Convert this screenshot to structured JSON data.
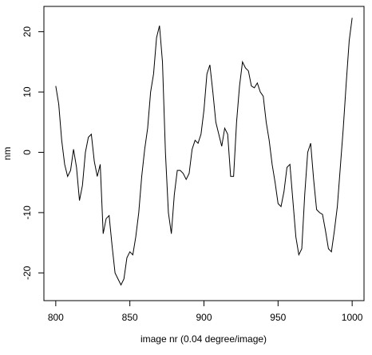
{
  "chart_data": {
    "type": "line",
    "xlabel": "image nr (0.04 degree/image)",
    "ylabel": "nm",
    "x": [
      800,
      802,
      804,
      806,
      808,
      810,
      812,
      814,
      816,
      818,
      820,
      822,
      824,
      826,
      828,
      830,
      832,
      834,
      836,
      838,
      840,
      842,
      844,
      846,
      848,
      850,
      852,
      854,
      856,
      858,
      860,
      862,
      864,
      866,
      868,
      870,
      872,
      874,
      876,
      878,
      880,
      882,
      884,
      886,
      888,
      890,
      892,
      894,
      896,
      898,
      900,
      902,
      904,
      906,
      908,
      910,
      912,
      914,
      916,
      918,
      920,
      922,
      924,
      926,
      928,
      930,
      932,
      934,
      936,
      938,
      940,
      942,
      944,
      946,
      948,
      950,
      952,
      954,
      956,
      958,
      960,
      962,
      964,
      966,
      968,
      970,
      972,
      974,
      976,
      978,
      980,
      982,
      984,
      986,
      988,
      990,
      992,
      994,
      996,
      998,
      1000
    ],
    "series": [
      {
        "name": "nm",
        "color": "#000000",
        "values": [
          11,
          8,
          2,
          -2,
          -4,
          -3,
          0.5,
          -2.5,
          -8,
          -5.5,
          0,
          2.5,
          3,
          -1.5,
          -4,
          -2,
          -13.5,
          -11,
          -10.5,
          -15.5,
          -20,
          -21,
          -22,
          -21,
          -17.5,
          -16.5,
          -17,
          -14,
          -10,
          -4,
          0.5,
          4,
          10,
          13,
          19,
          21,
          15,
          0,
          -10,
          -13.5,
          -7,
          -3,
          -3,
          -3.5,
          -4.5,
          -3.5,
          0.5,
          2,
          1.5,
          3,
          7,
          13,
          14.5,
          10,
          5,
          3,
          1,
          4,
          3,
          -4,
          -4,
          5,
          11,
          15,
          14,
          13.5,
          11,
          10.7,
          11.5,
          10,
          9.3,
          5,
          2,
          -2,
          -5,
          -8.5,
          -9,
          -6.5,
          -2.5,
          -2,
          -8,
          -14,
          -17,
          -16,
          -7,
          0,
          1.5,
          -4.5,
          -9.5,
          -10,
          -10.3,
          -13,
          -16,
          -16.5,
          -13,
          -9,
          -2.5,
          4,
          11.5,
          18.5,
          22.3
        ]
      }
    ],
    "xlim": [
      792,
      1008
    ],
    "xticks": [
      800,
      850,
      900,
      950,
      1000
    ],
    "ylim": [
      -24.6,
      24.2
    ],
    "yticks": [
      -20,
      -10,
      0,
      10,
      20
    ]
  }
}
